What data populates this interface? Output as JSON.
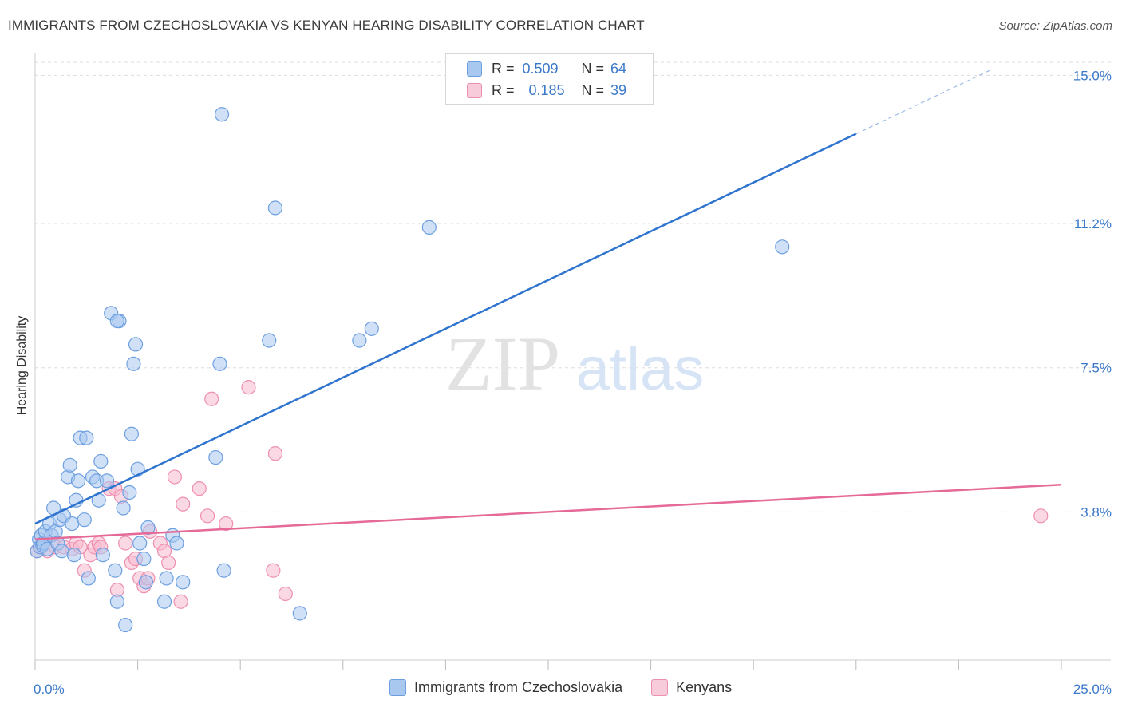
{
  "title": "IMMIGRANTS FROM CZECHOSLOVAKIA VS KENYAN HEARING DISABILITY CORRELATION CHART",
  "source": "Source: ZipAtlas.com",
  "watermark": {
    "zip": "ZIP",
    "atlas": "atlas"
  },
  "legend": {
    "r_label": "R =",
    "n_label": "N =",
    "series1": {
      "r": "0.509",
      "n": "64"
    },
    "series2": {
      "r": "0.185",
      "n": "39"
    }
  },
  "bottom_legend": {
    "series1": "Immigrants from Czechoslovakia",
    "series2": "Kenyans"
  },
  "colors": {
    "blue_fill": "#a9c8f0",
    "blue_stroke": "#6d9fe0",
    "blue_line": "#2f74cf",
    "pink_fill": "#f7b9cd",
    "pink_stroke": "#ee8fb0",
    "pink_line": "#e56a97",
    "tick_text": "#3a78c9",
    "grid": "#dddddd"
  },
  "chart_data": {
    "type": "scatter",
    "title": "IMMIGRANTS FROM CZECHOSLOVAKIA VS KENYAN HEARING DISABILITY CORRELATION CHART",
    "xlabel": "",
    "ylabel": "Hearing Disability",
    "xlim": [
      0,
      25
    ],
    "ylim": [
      0,
      15.5
    ],
    "x_tick_labels": [
      {
        "value": 0,
        "label": "0.0%"
      },
      {
        "value": 25,
        "label": "25.0%"
      }
    ],
    "y_ticks": [
      {
        "value": 3.8,
        "label": "3.8%"
      },
      {
        "value": 7.5,
        "label": "7.5%"
      },
      {
        "value": 11.2,
        "label": "11.2%"
      },
      {
        "value": 15.0,
        "label": "15.0%"
      }
    ],
    "series": [
      {
        "name": "Immigrants from Czechoslovakia",
        "color": "#a9c8f0",
        "points": [
          [
            0.05,
            2.8
          ],
          [
            0.1,
            3.1
          ],
          [
            0.12,
            2.9
          ],
          [
            0.15,
            3.2
          ],
          [
            0.18,
            2.95
          ],
          [
            0.2,
            3.0
          ],
          [
            0.25,
            3.3
          ],
          [
            0.3,
            2.85
          ],
          [
            0.35,
            3.5
          ],
          [
            0.4,
            3.2
          ],
          [
            0.45,
            3.9
          ],
          [
            0.5,
            3.3
          ],
          [
            0.55,
            3.0
          ],
          [
            0.6,
            3.6
          ],
          [
            0.65,
            2.8
          ],
          [
            0.7,
            3.7
          ],
          [
            0.8,
            4.7
          ],
          [
            0.85,
            5.0
          ],
          [
            0.9,
            3.5
          ],
          [
            0.95,
            2.7
          ],
          [
            1.0,
            4.1
          ],
          [
            1.05,
            4.6
          ],
          [
            1.1,
            5.7
          ],
          [
            1.2,
            3.6
          ],
          [
            1.25,
            5.7
          ],
          [
            1.3,
            2.1
          ],
          [
            1.4,
            4.7
          ],
          [
            1.5,
            4.6
          ],
          [
            1.55,
            4.1
          ],
          [
            1.6,
            5.1
          ],
          [
            1.65,
            2.7
          ],
          [
            1.75,
            4.6
          ],
          [
            1.85,
            8.9
          ],
          [
            1.95,
            2.3
          ],
          [
            2.0,
            1.5
          ],
          [
            2.05,
            8.7
          ],
          [
            2.15,
            3.9
          ],
          [
            2.2,
            0.9
          ],
          [
            2.3,
            4.3
          ],
          [
            2.35,
            5.8
          ],
          [
            2.4,
            7.6
          ],
          [
            2.45,
            8.1
          ],
          [
            2.5,
            4.9
          ],
          [
            2.55,
            3.0
          ],
          [
            2.65,
            2.6
          ],
          [
            2.7,
            2.0
          ],
          [
            2.75,
            3.4
          ],
          [
            3.15,
            1.5
          ],
          [
            3.2,
            2.1
          ],
          [
            3.35,
            3.2
          ],
          [
            3.45,
            3.0
          ],
          [
            3.6,
            2.0
          ],
          [
            4.4,
            5.2
          ],
          [
            4.5,
            7.6
          ],
          [
            4.6,
            2.3
          ],
          [
            4.55,
            14.0
          ],
          [
            5.7,
            8.2
          ],
          [
            5.85,
            11.6
          ],
          [
            6.45,
            1.2
          ],
          [
            7.9,
            8.2
          ],
          [
            8.2,
            8.5
          ],
          [
            9.6,
            11.1
          ],
          [
            18.2,
            10.6
          ],
          [
            2.0,
            8.7
          ]
        ]
      },
      {
        "name": "Kenyans",
        "color": "#f7b9cd",
        "points": [
          [
            0.05,
            2.8
          ],
          [
            0.15,
            2.9
          ],
          [
            0.3,
            2.8
          ],
          [
            0.5,
            2.9
          ],
          [
            0.7,
            2.9
          ],
          [
            0.9,
            2.85
          ],
          [
            1.0,
            3.0
          ],
          [
            1.1,
            2.9
          ],
          [
            1.2,
            2.3
          ],
          [
            1.35,
            2.7
          ],
          [
            1.45,
            2.9
          ],
          [
            1.55,
            3.0
          ],
          [
            1.6,
            2.9
          ],
          [
            1.8,
            4.4
          ],
          [
            1.95,
            4.4
          ],
          [
            2.0,
            1.8
          ],
          [
            2.1,
            4.2
          ],
          [
            2.2,
            3.0
          ],
          [
            2.35,
            2.5
          ],
          [
            2.45,
            2.6
          ],
          [
            2.55,
            2.1
          ],
          [
            2.65,
            1.9
          ],
          [
            2.75,
            2.1
          ],
          [
            2.8,
            3.3
          ],
          [
            3.05,
            3.0
          ],
          [
            3.15,
            2.8
          ],
          [
            3.25,
            2.5
          ],
          [
            3.4,
            4.7
          ],
          [
            3.55,
            1.5
          ],
          [
            3.6,
            4.0
          ],
          [
            4.0,
            4.4
          ],
          [
            4.2,
            3.7
          ],
          [
            4.3,
            6.7
          ],
          [
            4.65,
            3.5
          ],
          [
            5.2,
            7.0
          ],
          [
            5.8,
            2.3
          ],
          [
            5.85,
            5.3
          ],
          [
            6.1,
            1.7
          ],
          [
            24.5,
            3.7
          ]
        ]
      }
    ],
    "trendlines": [
      {
        "series": "Immigrants from Czechoslovakia",
        "x0": 0,
        "y0": 3.5,
        "x1": 20,
        "y1": 13.5,
        "dashed_extension_to_x": 23.3
      },
      {
        "series": "Kenyans",
        "x0": 0,
        "y0": 3.1,
        "x1": 25,
        "y1": 4.5
      }
    ]
  }
}
